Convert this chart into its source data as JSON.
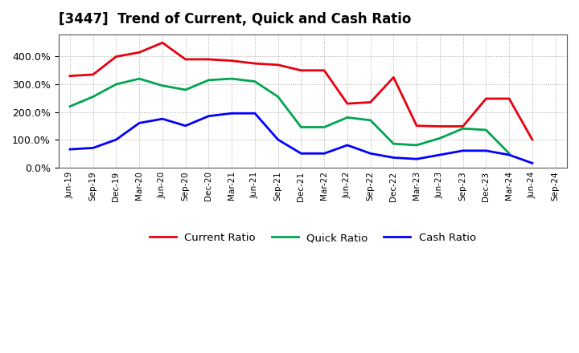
{
  "title": "[3447]  Trend of Current, Quick and Cash Ratio",
  "labels": [
    "Jun-19",
    "Sep-19",
    "Dec-19",
    "Mar-20",
    "Jun-20",
    "Sep-20",
    "Dec-20",
    "Mar-21",
    "Jun-21",
    "Sep-21",
    "Dec-21",
    "Mar-22",
    "Jun-22",
    "Sep-22",
    "Dec-22",
    "Mar-23",
    "Jun-23",
    "Sep-23",
    "Dec-23",
    "Mar-24",
    "Jun-24",
    "Sep-24"
  ],
  "current_ratio": [
    330,
    335,
    400,
    415,
    450,
    390,
    390,
    385,
    375,
    370,
    350,
    350,
    230,
    235,
    325,
    150,
    148,
    148,
    248,
    248,
    100,
    null
  ],
  "quick_ratio": [
    220,
    255,
    300,
    320,
    295,
    280,
    315,
    320,
    310,
    255,
    145,
    145,
    180,
    170,
    85,
    80,
    105,
    140,
    135,
    50,
    null,
    null
  ],
  "cash_ratio": [
    65,
    70,
    100,
    160,
    175,
    150,
    185,
    195,
    195,
    100,
    50,
    50,
    80,
    50,
    35,
    30,
    45,
    60,
    60,
    45,
    15,
    null
  ],
  "current_color": "#e8000d",
  "quick_color": "#00a550",
  "cash_color": "#0000ff",
  "ylim": [
    0,
    480
  ],
  "yticks": [
    0,
    100,
    200,
    300,
    400
  ],
  "bg_color": "#ffffff",
  "plot_bg_color": "#ffffff",
  "linewidth": 2.0,
  "title_fontsize": 12,
  "legend_fontsize": 9.5
}
